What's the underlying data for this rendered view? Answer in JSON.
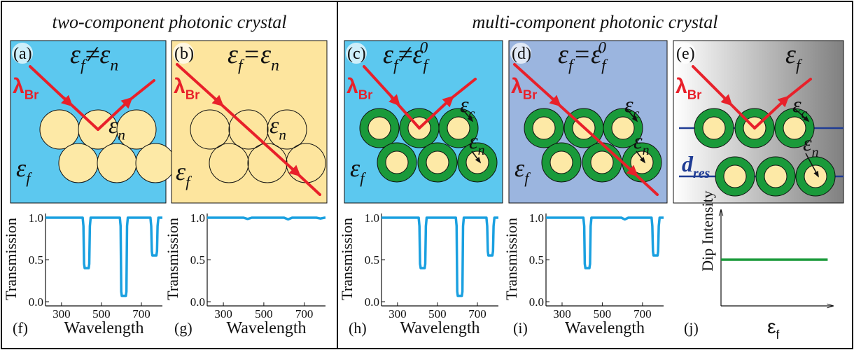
{
  "headings": [
    "two-component photonic crystal",
    "multi-component photonic crystal"
  ],
  "panels": [
    {
      "label": "(a)",
      "equation": [
        {
          "t": "ε"
        },
        {
          "sub": "f"
        },
        {
          "t": "≠ε"
        },
        {
          "sub": "n"
        }
      ],
      "lambda": [
        {
          "t": "λ"
        },
        {
          "sub": "Br"
        }
      ],
      "symbols": [
        [
          {
            "t": "ε"
          },
          {
            "sub": "n"
          }
        ],
        [
          {
            "t": "ε"
          },
          {
            "sub": "f"
          }
        ]
      ]
    },
    {
      "label": "(b)",
      "equation": [
        {
          "t": "ε"
        },
        {
          "sub": "f"
        },
        {
          "t": "=ε"
        },
        {
          "sub": "n"
        }
      ],
      "lambda": [
        {
          "t": "λ"
        },
        {
          "sub": "Br"
        }
      ],
      "symbols": [
        [
          {
            "t": "ε"
          },
          {
            "sub": "n"
          }
        ],
        [
          {
            "t": "ε"
          },
          {
            "sub": "f"
          }
        ]
      ]
    },
    {
      "label": "(c)",
      "equation": [
        {
          "t": "ε"
        },
        {
          "sub": "f"
        },
        {
          "t": "≠ε"
        },
        {
          "sub": "f"
        },
        {
          "sup": "0"
        }
      ],
      "lambda": [
        {
          "t": "λ"
        },
        {
          "sub": "Br"
        }
      ],
      "symbols": [
        [
          {
            "t": "ε"
          },
          {
            "sub": "c"
          }
        ],
        [
          {
            "t": "ε"
          },
          {
            "sub": "n"
          }
        ],
        [
          {
            "t": "ε"
          },
          {
            "sub": "f"
          }
        ]
      ]
    },
    {
      "label": "(d)",
      "equation": [
        {
          "t": "ε"
        },
        {
          "sub": "f"
        },
        {
          "t": "=ε"
        },
        {
          "sub": "f"
        },
        {
          "sup": "0"
        }
      ],
      "lambda": [
        {
          "t": "λ"
        },
        {
          "sub": "Br"
        }
      ],
      "symbols": [
        [
          {
            "t": "ε"
          },
          {
            "sub": "c"
          }
        ],
        [
          {
            "t": "ε"
          },
          {
            "sub": "n"
          }
        ],
        [
          {
            "t": "ε"
          },
          {
            "sub": "f"
          }
        ]
      ]
    },
    {
      "label": "(e)",
      "equation": [
        {
          "t": "ε"
        },
        {
          "sub": "f"
        }
      ],
      "lambda": [
        {
          "t": "λ"
        },
        {
          "sub": "Br"
        }
      ],
      "symbols": [
        [
          {
            "t": "ε"
          },
          {
            "sub": "c"
          }
        ],
        [
          {
            "t": "ε"
          },
          {
            "sub": "n"
          }
        ],
        [
          {
            "t": "d"
          },
          {
            "sub": "res"
          }
        ]
      ]
    }
  ],
  "chart_data": [
    {
      "type": "line",
      "label": "(f)",
      "x_label": "Wavelength",
      "y_label": "Transmission",
      "color": "#1aa0e0",
      "x": [
        220,
        406,
        410,
        413,
        416,
        436,
        439,
        442,
        446,
        592,
        596,
        599,
        602,
        622,
        625,
        628,
        632,
        745,
        749,
        752,
        755,
        775,
        778,
        781,
        785,
        805
      ],
      "values": [
        1,
        1,
        0.9,
        0.45,
        0.4,
        0.4,
        0.45,
        0.9,
        1,
        1,
        0.9,
        0.12,
        0.07,
        0.07,
        0.12,
        0.9,
        1,
        1,
        0.9,
        0.6,
        0.55,
        0.55,
        0.6,
        0.9,
        1,
        1
      ],
      "xlim": [
        220,
        805
      ],
      "ylim": [
        -0.05,
        1.05
      ],
      "xticks": [
        300,
        500,
        700
      ],
      "yticks": [
        {
          "value": 0,
          "label": "0.0"
        },
        {
          "value": 0.5,
          "label": "0.5"
        },
        {
          "value": 1,
          "label": "1.0"
        }
      ]
    },
    {
      "type": "line",
      "label": "(g)",
      "x_label": "Wavelength",
      "y_label": "Transmission",
      "color": "#1aa0e0",
      "x": [
        220,
        400,
        420,
        440,
        600,
        620,
        640,
        760,
        780,
        800,
        805
      ],
      "values": [
        1,
        1,
        0.985,
        1,
        1,
        0.98,
        1,
        1,
        0.99,
        1,
        1
      ],
      "xlim": [
        220,
        805
      ],
      "ylim": [
        -0.05,
        1.05
      ],
      "xticks": [
        300,
        500,
        700
      ],
      "yticks": [
        {
          "value": 0,
          "label": "0.0"
        },
        {
          "value": 0.5,
          "label": "0.5"
        },
        {
          "value": 1,
          "label": "1.0"
        }
      ]
    },
    {
      "type": "line",
      "label": "(h)",
      "x_label": "Wavelength",
      "y_label": "Transmission",
      "color": "#1aa0e0",
      "x": [
        220,
        406,
        410,
        413,
        416,
        436,
        439,
        442,
        446,
        592,
        596,
        599,
        602,
        622,
        625,
        628,
        632,
        745,
        749,
        752,
        755,
        775,
        778,
        781,
        785,
        805
      ],
      "values": [
        1,
        1,
        0.9,
        0.45,
        0.4,
        0.4,
        0.45,
        0.9,
        1,
        1,
        0.9,
        0.12,
        0.07,
        0.07,
        0.12,
        0.9,
        1,
        1,
        0.9,
        0.6,
        0.55,
        0.55,
        0.6,
        0.9,
        1,
        1
      ],
      "xlim": [
        220,
        805
      ],
      "ylim": [
        -0.05,
        1.05
      ],
      "xticks": [
        300,
        500,
        700
      ],
      "yticks": [
        {
          "value": 0,
          "label": "0.0"
        },
        {
          "value": 0.5,
          "label": "0.5"
        },
        {
          "value": 1,
          "label": "1.0"
        }
      ]
    },
    {
      "type": "line",
      "label": "(i)",
      "x_label": "Wavelength",
      "y_label": "Transmission",
      "color": "#1aa0e0",
      "x": [
        220,
        406,
        410,
        413,
        416,
        436,
        439,
        442,
        446,
        595,
        612,
        630,
        745,
        749,
        752,
        755,
        775,
        778,
        781,
        785,
        805
      ],
      "values": [
        1,
        1,
        0.9,
        0.45,
        0.4,
        0.4,
        0.45,
        0.9,
        1,
        1,
        0.98,
        1,
        1,
        0.9,
        0.6,
        0.55,
        0.55,
        0.6,
        0.9,
        1,
        1
      ],
      "xlim": [
        220,
        805
      ],
      "ylim": [
        -0.05,
        1.05
      ],
      "xticks": [
        300,
        500,
        700
      ],
      "yticks": [
        {
          "value": 0,
          "label": "0.0"
        },
        {
          "value": 0.5,
          "label": "0.5"
        },
        {
          "value": 1,
          "label": "1.0"
        }
      ]
    },
    {
      "type": "line",
      "label": "(j)",
      "x_label": [
        {
          "t": "ε"
        },
        {
          "sub": "f"
        }
      ],
      "y_label": "Dip Intensity",
      "color": "#1a9a3a",
      "x": [
        0,
        1
      ],
      "values": [
        0.5,
        0.5
      ],
      "xlim": [
        0,
        1.05
      ],
      "ylim": [
        0,
        1
      ]
    }
  ]
}
